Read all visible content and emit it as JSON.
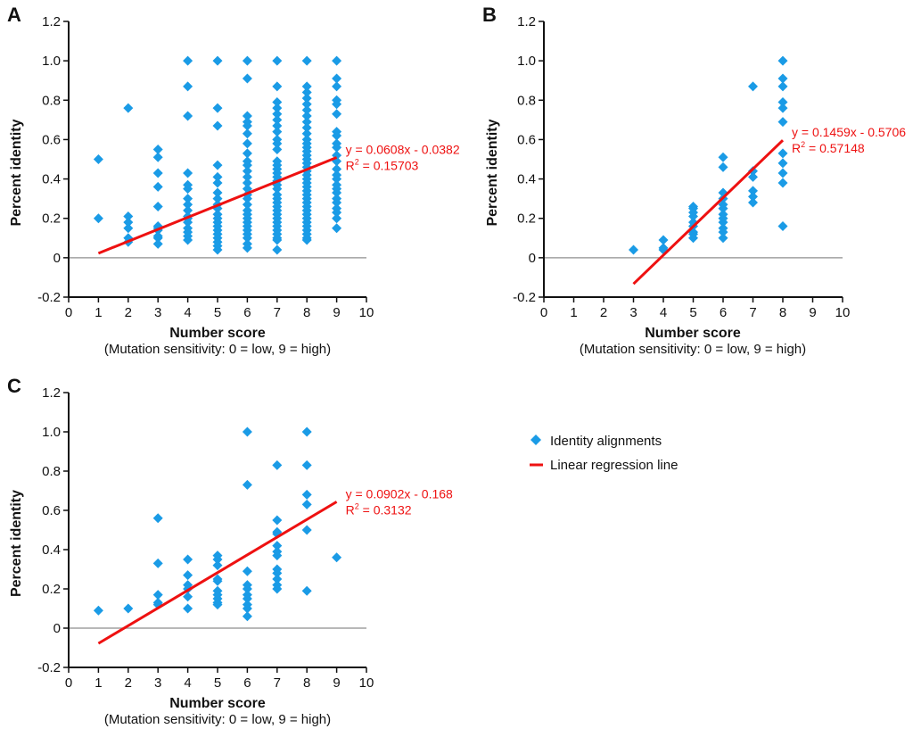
{
  "chart_data": [
    {
      "type": "scatter",
      "panel": "A",
      "xlabel": "Number score",
      "xsublabel": "(Mutation sensitivity: 0 = low, 9 = high)",
      "ylabel": "Percent identity",
      "xlim": [
        0,
        10
      ],
      "ylim": [
        -0.2,
        1.2
      ],
      "xticks": [
        "0",
        "1",
        "2",
        "3",
        "4",
        "5",
        "6",
        "7",
        "8",
        "9",
        "10"
      ],
      "yticks": [
        "-0.2",
        "0",
        "0.2",
        "0.4",
        "0.6",
        "0.8",
        "1.0",
        "1.2"
      ],
      "zero_line": true,
      "regression": {
        "slope": 0.0608,
        "intercept": -0.0382,
        "x_range": [
          1,
          9
        ],
        "equation": "y = 0.0608x - 0.0382",
        "r2_label": "R",
        "r2_value": " = 0.15703"
      },
      "points": {
        "1": [
          0.5,
          0.2
        ],
        "2": [
          0.76,
          0.21,
          0.18,
          0.15,
          0.1,
          0.08
        ],
        "3": [
          0.55,
          0.51,
          0.43,
          0.36,
          0.26,
          0.16,
          0.15,
          0.14,
          0.11,
          0.1,
          0.07
        ],
        "4": [
          1.0,
          0.87,
          0.72,
          0.43,
          0.37,
          0.35,
          0.3,
          0.27,
          0.24,
          0.21,
          0.2,
          0.18,
          0.15,
          0.13,
          0.11,
          0.09
        ],
        "5": [
          1.0,
          0.76,
          0.67,
          0.47,
          0.41,
          0.38,
          0.33,
          0.3,
          0.27,
          0.25,
          0.22,
          0.2,
          0.18,
          0.16,
          0.14,
          0.12,
          0.1,
          0.08,
          0.06,
          0.04
        ],
        "6": [
          1.0,
          0.91,
          0.72,
          0.69,
          0.67,
          0.63,
          0.58,
          0.53,
          0.49,
          0.47,
          0.44,
          0.41,
          0.38,
          0.35,
          0.32,
          0.3,
          0.27,
          0.24,
          0.22,
          0.2,
          0.18,
          0.16,
          0.14,
          0.12,
          0.1,
          0.07,
          0.05
        ],
        "7": [
          1.0,
          0.87,
          0.79,
          0.76,
          0.73,
          0.7,
          0.67,
          0.64,
          0.6,
          0.58,
          0.55,
          0.49,
          0.47,
          0.45,
          0.43,
          0.41,
          0.39,
          0.37,
          0.35,
          0.32,
          0.3,
          0.28,
          0.26,
          0.24,
          0.22,
          0.2,
          0.18,
          0.16,
          0.14,
          0.12,
          0.1,
          0.09,
          0.04
        ],
        "8": [
          1.0,
          0.87,
          0.84,
          0.81,
          0.78,
          0.75,
          0.72,
          0.69,
          0.66,
          0.63,
          0.6,
          0.58,
          0.56,
          0.54,
          0.52,
          0.5,
          0.48,
          0.46,
          0.44,
          0.42,
          0.4,
          0.38,
          0.36,
          0.34,
          0.32,
          0.3,
          0.28,
          0.26,
          0.24,
          0.22,
          0.2,
          0.18,
          0.16,
          0.14,
          0.12,
          0.1,
          0.09
        ],
        "9": [
          1.0,
          0.91,
          0.87,
          0.8,
          0.78,
          0.73,
          0.64,
          0.62,
          0.58,
          0.56,
          0.52,
          0.49,
          0.45,
          0.42,
          0.4,
          0.37,
          0.35,
          0.33,
          0.3,
          0.28,
          0.25,
          0.23,
          0.2,
          0.15
        ]
      }
    },
    {
      "type": "scatter",
      "panel": "B",
      "xlabel": "Number score",
      "xsublabel": "(Mutation sensitivity: 0 = low, 9 = high)",
      "ylabel": "Percent identity",
      "xlim": [
        0,
        10
      ],
      "ylim": [
        -0.2,
        1.2
      ],
      "xticks": [
        "0",
        "1",
        "2",
        "3",
        "4",
        "5",
        "6",
        "7",
        "8",
        "9",
        "10"
      ],
      "yticks": [
        "-0.2",
        "0",
        "0.2",
        "0.4",
        "0.6",
        "0.8",
        "1.0",
        "1.2"
      ],
      "zero_line": true,
      "regression": {
        "slope": 0.1459,
        "intercept": -0.5706,
        "x_range": [
          3,
          8
        ],
        "equation": "y = 0.1459x - 0.5706",
        "r2_label": "R",
        "r2_value": " = 0.57148"
      },
      "points": {
        "3": [
          0.04
        ],
        "4": [
          0.09,
          0.05,
          0.04
        ],
        "5": [
          0.26,
          0.25,
          0.23,
          0.21,
          0.18,
          0.16,
          0.13,
          0.12,
          0.1
        ],
        "6": [
          0.51,
          0.46,
          0.33,
          0.3,
          0.27,
          0.25,
          0.22,
          0.2,
          0.18,
          0.15,
          0.13,
          0.1
        ],
        "7": [
          0.87,
          0.44,
          0.41,
          0.34,
          0.31,
          0.28
        ],
        "8": [
          1.0,
          0.91,
          0.87,
          0.79,
          0.76,
          0.69,
          0.53,
          0.48,
          0.43,
          0.38,
          0.16
        ]
      }
    },
    {
      "type": "scatter",
      "panel": "C",
      "xlabel": "Number score",
      "xsublabel": "(Mutation sensitivity: 0 = low, 9 = high)",
      "ylabel": "Percent identity",
      "xlim": [
        0,
        10
      ],
      "ylim": [
        -0.2,
        1.2
      ],
      "xticks": [
        "0",
        "1",
        "2",
        "3",
        "4",
        "5",
        "6",
        "7",
        "8",
        "9",
        "10"
      ],
      "yticks": [
        "-0.2",
        "0",
        "0.2",
        "0.4",
        "0.6",
        "0.8",
        "1.0",
        "1.2"
      ],
      "zero_line": true,
      "regression": {
        "slope": 0.0902,
        "intercept": -0.168,
        "x_range": [
          1,
          9
        ],
        "equation": "y = 0.0902x - 0.168",
        "r2_label": "R",
        "r2_value": " = 0.3132"
      },
      "points": {
        "1": [
          0.09
        ],
        "2": [
          0.1
        ],
        "3": [
          0.56,
          0.33,
          0.17,
          0.13,
          0.12
        ],
        "4": [
          0.35,
          0.27,
          0.22,
          0.2,
          0.16,
          0.1
        ],
        "5": [
          0.37,
          0.35,
          0.32,
          0.25,
          0.24,
          0.19,
          0.17,
          0.15,
          0.13,
          0.12
        ],
        "6": [
          1.0,
          0.73,
          0.29,
          0.22,
          0.2,
          0.17,
          0.15,
          0.12,
          0.1,
          0.06
        ],
        "7": [
          0.83,
          0.55,
          0.49,
          0.48,
          0.42,
          0.39,
          0.37,
          0.3,
          0.28,
          0.25,
          0.22,
          0.2
        ],
        "8": [
          1.0,
          0.83,
          0.68,
          0.63,
          0.5,
          0.19
        ],
        "9": [
          0.36
        ]
      }
    }
  ],
  "legend": {
    "position": "right-of-panel-C",
    "items": [
      {
        "label": "Identity alignments",
        "marker": "diamond"
      },
      {
        "label": "Linear regression line",
        "marker": "line"
      }
    ]
  },
  "colors": {
    "points": "#1a9be6",
    "regression": "#ee1111",
    "zero_line": "#a0a0a0",
    "axis": "#111111"
  }
}
